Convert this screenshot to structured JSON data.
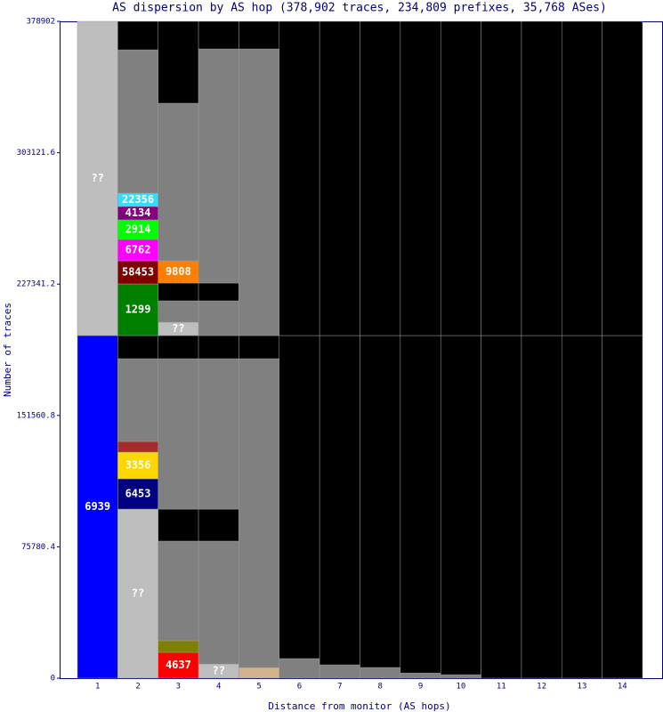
{
  "chart_data": {
    "type": "stacked-column",
    "title": "AS dispersion by AS hop (378,902 traces, 234,809 prefixes, 35,768 ASes)",
    "x_label": "Distance from monitor (AS hops)",
    "y_label": "Number of traces",
    "categories": [
      "1",
      "2",
      "3",
      "4",
      "5",
      "6",
      "7",
      "8",
      "9",
      "10",
      "11",
      "12",
      "13",
      "14"
    ],
    "ylim": [
      0,
      378902
    ],
    "yticks": [
      0,
      75780.4,
      151560.8,
      227341.2,
      303121.6,
      378902
    ],
    "columns": [
      {
        "segments": [
          {
            "label": "6939",
            "value": 197660,
            "color": "#0000ff"
          },
          {
            "label": "??",
            "value": 181242,
            "color": "#bebebe"
          }
        ]
      },
      {
        "segments": [
          {
            "label": "??",
            "value": 97540,
            "color": "#bebebe"
          },
          {
            "label": "6453",
            "value": 17460,
            "color": "#000080"
          },
          {
            "label": "3356",
            "value": 15400,
            "color": "#ffd700"
          },
          {
            "label": null,
            "value": 6160,
            "color": "#a52a2a"
          },
          {
            "label": null,
            "value": 47750,
            "color": "#808080"
          },
          {
            "label": null,
            "value": 13350,
            "color": "#000000"
          },
          {
            "label": "1299",
            "value": 29780,
            "color": "#008000"
          },
          {
            "label": "58453",
            "value": 13350,
            "color": "#800000"
          },
          {
            "label": "6762",
            "value": 12320,
            "color": "#ff00ff"
          },
          {
            "label": "2914",
            "value": 11300,
            "color": "#00ff00"
          },
          {
            "label": "4134",
            "value": 7700,
            "color": "#800080"
          },
          {
            "label": "22356",
            "value": 7700,
            "color": "#33ddff"
          },
          {
            "label": null,
            "value": 82660,
            "color": "#808080"
          },
          {
            "label": null,
            "value": 16432,
            "color": "#000000"
          }
        ]
      },
      {
        "segments": [
          {
            "label": "4637",
            "value": 14890,
            "color": "#ff0000"
          },
          {
            "label": null,
            "value": 6670,
            "color": "#808000"
          },
          {
            "label": null,
            "value": 57500,
            "color": "#808080"
          },
          {
            "label": null,
            "value": 18480,
            "color": "#000000"
          },
          {
            "label": null,
            "value": 86770,
            "color": "#808080"
          },
          {
            "label": null,
            "value": 13350,
            "color": "#000000"
          },
          {
            "label": "??",
            "value": 7700,
            "color": "#bebebe"
          },
          {
            "label": null,
            "value": 12320,
            "color": "#808080"
          },
          {
            "label": null,
            "value": 10270,
            "color": "#000000"
          },
          {
            "label": "9808",
            "value": 12840,
            "color": "#ff8000"
          },
          {
            "label": null,
            "value": 90870,
            "color": "#808080"
          },
          {
            "label": null,
            "value": 47242,
            "color": "#000000"
          }
        ]
      },
      {
        "segments": [
          {
            "label": "??",
            "value": 8210,
            "color": "#bebebe"
          },
          {
            "label": null,
            "value": 70850,
            "color": "#808080"
          },
          {
            "label": null,
            "value": 18480,
            "color": "#000000"
          },
          {
            "label": null,
            "value": 86770,
            "color": "#808080"
          },
          {
            "label": null,
            "value": 13350,
            "color": "#000000"
          },
          {
            "label": null,
            "value": 20020,
            "color": "#808080"
          },
          {
            "label": null,
            "value": 10270,
            "color": "#000000"
          },
          {
            "label": null,
            "value": 135030,
            "color": "#808080"
          },
          {
            "label": null,
            "value": 15922,
            "color": "#000000"
          }
        ]
      },
      {
        "segments": [
          {
            "label": null,
            "value": 6160,
            "color": "#d2b48c"
          },
          {
            "label": null,
            "value": 178150,
            "color": "#808080"
          },
          {
            "label": null,
            "value": 13350,
            "color": "#000000"
          },
          {
            "label": null,
            "value": 165320,
            "color": "#808080"
          },
          {
            "label": null,
            "value": 15922,
            "color": "#000000"
          }
        ]
      },
      {
        "segments": [
          {
            "label": null,
            "value": 11300,
            "color": "#808080"
          },
          {
            "label": null,
            "value": 186360,
            "color": "#000000"
          },
          {
            "label": null,
            "value": 181242,
            "color": "#000000"
          }
        ]
      },
      {
        "segments": [
          {
            "label": null,
            "value": 7700,
            "color": "#808080"
          },
          {
            "label": null,
            "value": 189960,
            "color": "#000000"
          },
          {
            "label": null,
            "value": 181242,
            "color": "#000000"
          }
        ]
      },
      {
        "segments": [
          {
            "label": null,
            "value": 6160,
            "color": "#808080"
          },
          {
            "label": null,
            "value": 191500,
            "color": "#000000"
          },
          {
            "label": null,
            "value": 181242,
            "color": "#000000"
          }
        ]
      },
      {
        "segments": [
          {
            "label": null,
            "value": 3000,
            "color": "#808080"
          },
          {
            "label": null,
            "value": 194660,
            "color": "#000000"
          },
          {
            "label": null,
            "value": 181242,
            "color": "#000000"
          }
        ]
      },
      {
        "segments": [
          {
            "label": null,
            "value": 2000,
            "color": "#808080"
          },
          {
            "label": null,
            "value": 195660,
            "color": "#000000"
          },
          {
            "label": null,
            "value": 181242,
            "color": "#000000"
          }
        ]
      },
      {
        "segments": [
          {
            "label": null,
            "value": 197660,
            "color": "#000000"
          },
          {
            "label": null,
            "value": 181242,
            "color": "#000000"
          }
        ]
      },
      {
        "segments": [
          {
            "label": null,
            "value": 197660,
            "color": "#000000"
          },
          {
            "label": null,
            "value": 181242,
            "color": "#000000"
          }
        ]
      },
      {
        "segments": [
          {
            "label": null,
            "value": 197660,
            "color": "#000000"
          },
          {
            "label": null,
            "value": 181242,
            "color": "#000000"
          }
        ]
      },
      {
        "segments": [
          {
            "label": null,
            "value": 197660,
            "color": "#000000"
          },
          {
            "label": null,
            "value": 181242,
            "color": "#000000"
          }
        ]
      }
    ]
  }
}
